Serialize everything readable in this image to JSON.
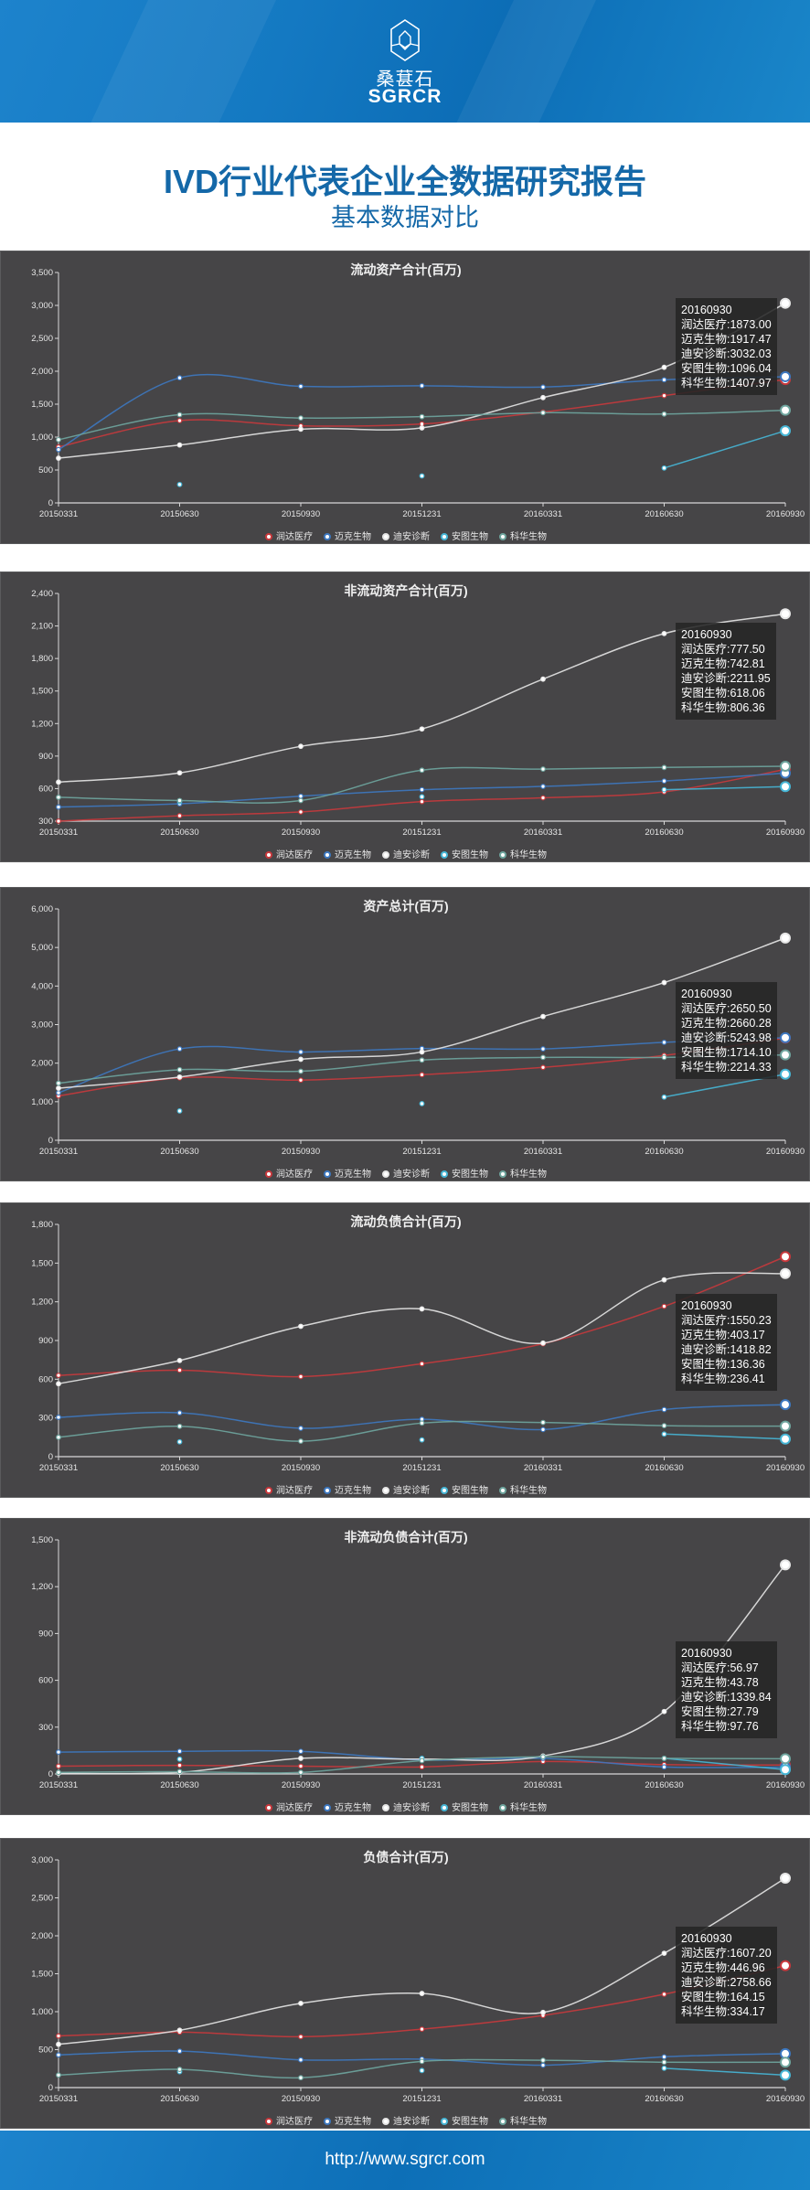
{
  "header": {
    "brand_cn": "桑葚石",
    "brand_en": "SGRCR"
  },
  "report": {
    "title": "IVD行业代表企业全数据研究报告",
    "subtitle": "基本数据对比"
  },
  "footer": {
    "url": "http://www.sgrcr.com"
  },
  "palette": {
    "润达医疗": "#c8383c",
    "迈克生物": "#3d78c0",
    "迪安诊断": "#e6e6e6",
    "安图生物": "#46b6d6",
    "科华生物": "#6ea59e"
  },
  "chart_data": [
    {
      "type": "line",
      "title": "流动资产合计(百万)",
      "legend_position": "bottom",
      "categories": [
        "20150331",
        "20150630",
        "20150930",
        "20151231",
        "20160331",
        "20160630",
        "20160930"
      ],
      "ylim": [
        0,
        3500
      ],
      "yticks": [
        "0",
        "500",
        "1,000",
        "1,500",
        "2,000",
        "2,500",
        "3,000",
        "3,500"
      ],
      "series": [
        {
          "name": "润达医疗",
          "values": [
            850,
            1250,
            1170,
            1200,
            1380,
            1630,
            1873.0
          ]
        },
        {
          "name": "迈克生物",
          "values": [
            810,
            1900,
            1770,
            1780,
            1760,
            1870,
            1917.47
          ]
        },
        {
          "name": "迪安诊断",
          "values": [
            680,
            880,
            1120,
            1140,
            1600,
            2060,
            3032.03
          ]
        },
        {
          "name": "安图生物",
          "values": [
            null,
            280,
            null,
            410,
            null,
            530,
            1096.04
          ]
        },
        {
          "name": "科华生物",
          "values": [
            960,
            1340,
            1290,
            1310,
            1370,
            1350,
            1407.97
          ]
        }
      ],
      "tooltip": {
        "title": "20160930",
        "lines": [
          "润达医疗:1873.00",
          "迈克生物:1917.47",
          "迪安诊断:3032.03",
          "安图生物:1096.04",
          "科华生物:1407.97"
        ]
      }
    },
    {
      "type": "line",
      "title": "非流动资产合计(百万)",
      "legend_position": "bottom",
      "categories": [
        "20150331",
        "20150630",
        "20150930",
        "20151231",
        "20160331",
        "20160630",
        "20160930"
      ],
      "ylim": [
        300,
        2400
      ],
      "yticks": [
        "300",
        "600",
        "900",
        "1,200",
        "1,500",
        "1,800",
        "2,100",
        "2,400"
      ],
      "series": [
        {
          "name": "润达医疗",
          "values": [
            300,
            350,
            385,
            480,
            515,
            570,
            777.5
          ]
        },
        {
          "name": "迈克生物",
          "values": [
            430,
            460,
            530,
            590,
            620,
            670,
            742.81
          ]
        },
        {
          "name": "迪安诊断",
          "values": [
            660,
            745,
            990,
            1150,
            1610,
            2030,
            2211.95
          ]
        },
        {
          "name": "安图生物",
          "values": [
            null,
            480,
            null,
            525,
            null,
            590,
            618.06
          ]
        },
        {
          "name": "科华生物",
          "values": [
            520,
            490,
            490,
            770,
            780,
            795,
            806.36
          ]
        }
      ],
      "tooltip": {
        "title": "20160930",
        "lines": [
          "润达医疗:777.50",
          "迈克生物:742.81",
          "迪安诊断:2211.95",
          "安图生物:618.06",
          "科华生物:806.36"
        ]
      }
    },
    {
      "type": "line",
      "title": "资产总计(百万)",
      "legend_position": "bottom",
      "categories": [
        "20150331",
        "20150630",
        "20150930",
        "20151231",
        "20160331",
        "20160630",
        "20160930"
      ],
      "ylim": [
        0,
        6000
      ],
      "yticks": [
        "0",
        "1,000",
        "2,000",
        "3,000",
        "4,000",
        "5,000",
        "6,000"
      ],
      "series": [
        {
          "name": "润达医疗",
          "values": [
            1150,
            1620,
            1560,
            1700,
            1890,
            2200,
            2650.5
          ]
        },
        {
          "name": "迈克生物",
          "values": [
            1230,
            2370,
            2290,
            2380,
            2370,
            2540,
            2660.28
          ]
        },
        {
          "name": "迪安诊断",
          "values": [
            1350,
            1640,
            2100,
            2290,
            3210,
            4090,
            5243.98
          ]
        },
        {
          "name": "安图生物",
          "values": [
            null,
            760,
            null,
            950,
            null,
            1120,
            1714.1
          ]
        },
        {
          "name": "科华生物",
          "values": [
            1480,
            1830,
            1790,
            2080,
            2150,
            2150,
            2214.33
          ]
        }
      ],
      "tooltip": {
        "title": "20160930",
        "lines": [
          "润达医疗:2650.50",
          "迈克生物:2660.28",
          "迪安诊断:5243.98",
          "安图生物:1714.10",
          "科华生物:2214.33"
        ]
      }
    },
    {
      "type": "line",
      "title": "流动负债合计(百万)",
      "legend_position": "bottom",
      "categories": [
        "20150331",
        "20150630",
        "20150930",
        "20151231",
        "20160331",
        "20160630",
        "20160930"
      ],
      "ylim": [
        0,
        1800
      ],
      "yticks": [
        "0",
        "300",
        "600",
        "900",
        "1,200",
        "1,500",
        "1,800"
      ],
      "series": [
        {
          "name": "润达医疗",
          "values": [
            630,
            670,
            620,
            720,
            875,
            1165,
            1550.23
          ]
        },
        {
          "name": "迈克生物",
          "values": [
            305,
            340,
            220,
            290,
            210,
            365,
            403.17
          ]
        },
        {
          "name": "迪安诊断",
          "values": [
            565,
            745,
            1010,
            1145,
            880,
            1370,
            1418.82
          ]
        },
        {
          "name": "安图生物",
          "values": [
            null,
            115,
            null,
            130,
            null,
            175,
            136.36
          ]
        },
        {
          "name": "科华生物",
          "values": [
            150,
            235,
            120,
            260,
            265,
            240,
            236.41
          ]
        }
      ],
      "tooltip": {
        "title": "20160930",
        "lines": [
          "润达医疗:1550.23",
          "迈克生物:403.17",
          "迪安诊断:1418.82",
          "安图生物:136.36",
          "科华生物:236.41"
        ]
      }
    },
    {
      "type": "line",
      "title": "非流动负债合计(百万)",
      "legend_position": "bottom",
      "categories": [
        "20150331",
        "20150630",
        "20150930",
        "20151231",
        "20160331",
        "20160630",
        "20160930"
      ],
      "ylim": [
        0,
        1500
      ],
      "yticks": [
        "0",
        "300",
        "600",
        "900",
        "1,200",
        "1,500"
      ],
      "series": [
        {
          "name": "润达医疗",
          "values": [
            50,
            55,
            50,
            45,
            80,
            60,
            56.97
          ]
        },
        {
          "name": "迈克生物",
          "values": [
            140,
            145,
            145,
            90,
            100,
            45,
            43.78
          ]
        },
        {
          "name": "迪安诊断",
          "values": [
            5,
            10,
            100,
            95,
            115,
            400,
            1339.84
          ]
        },
        {
          "name": "安图生物",
          "values": [
            null,
            95,
            null,
            100,
            null,
            100,
            27.79
          ]
        },
        {
          "name": "科华生物",
          "values": [
            10,
            15,
            10,
            85,
            110,
            100,
            97.76
          ]
        }
      ],
      "tooltip": {
        "title": "20160930",
        "lines": [
          "润达医疗:56.97",
          "迈克生物:43.78",
          "迪安诊断:1339.84",
          "安图生物:27.79",
          "科华生物:97.76"
        ]
      }
    },
    {
      "type": "line",
      "title": "负债合计(百万)",
      "legend_position": "bottom",
      "categories": [
        "20150331",
        "20150630",
        "20150930",
        "20151231",
        "20160331",
        "20160630",
        "20160930"
      ],
      "ylim": [
        0,
        3000
      ],
      "yticks": [
        "0",
        "500",
        "1,000",
        "1,500",
        "2,000",
        "2,500",
        "3,000"
      ],
      "series": [
        {
          "name": "润达医疗",
          "values": [
            680,
            730,
            670,
            770,
            950,
            1230,
            1607.2
          ]
        },
        {
          "name": "迈克生物",
          "values": [
            430,
            480,
            365,
            375,
            295,
            405,
            446.96
          ]
        },
        {
          "name": "迪安诊断",
          "values": [
            570,
            755,
            1110,
            1240,
            990,
            1770,
            2758.66
          ]
        },
        {
          "name": "安图生物",
          "values": [
            null,
            210,
            null,
            225,
            null,
            255,
            164.15
          ]
        },
        {
          "name": "科华生物",
          "values": [
            165,
            240,
            130,
            345,
            360,
            335,
            334.17
          ]
        }
      ],
      "tooltip": {
        "title": "20160930",
        "lines": [
          "润达医疗:1607.20",
          "迈克生物:446.96",
          "迪安诊断:2758.66",
          "安图生物:164.15",
          "科华生物:334.17"
        ]
      }
    }
  ]
}
